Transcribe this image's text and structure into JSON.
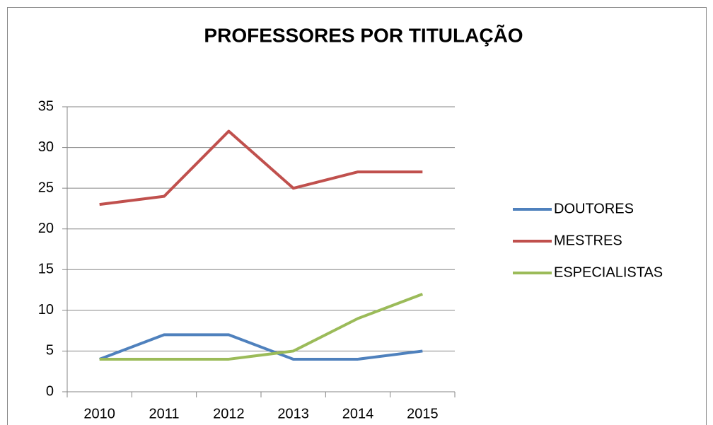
{
  "chart_data": {
    "type": "line",
    "title": "PROFESSORES POR TITULAÇÃO",
    "categories": [
      "2010",
      "2011",
      "2012",
      "2013",
      "2014",
      "2015"
    ],
    "series": [
      {
        "name": "DOUTORES",
        "color": "#4f81bd",
        "values": [
          4,
          7,
          7,
          4,
          4,
          5
        ]
      },
      {
        "name": "MESTRES",
        "color": "#c0504d",
        "values": [
          23,
          24,
          32,
          25,
          27,
          27
        ]
      },
      {
        "name": "ESPECIALISTAS",
        "color": "#9bbb59",
        "values": [
          4,
          4,
          4,
          5,
          9,
          12
        ]
      }
    ],
    "ylim": [
      0,
      35
    ],
    "yticks": [
      0,
      5,
      10,
      15,
      20,
      25,
      30,
      35
    ],
    "grid": true,
    "legend": "right"
  }
}
